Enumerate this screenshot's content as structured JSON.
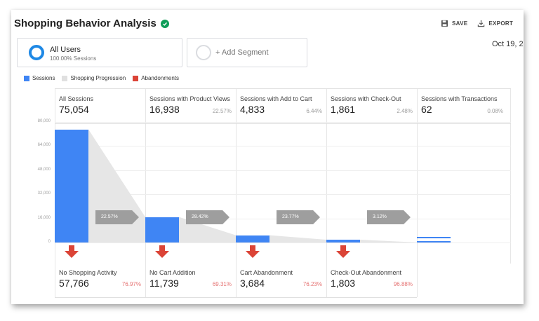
{
  "header": {
    "title": "Shopping Behavior Analysis",
    "save_label": "SAVE",
    "export_label": "EXPORT"
  },
  "segments": {
    "primary": {
      "name": "All Users",
      "sub": "100.00% Sessions"
    },
    "add_label": "+ Add Segment"
  },
  "date_range": "Oct 19, 2",
  "legend": [
    {
      "label": "Sessions",
      "color": "#3f85f4"
    },
    {
      "label": "Shopping Progression",
      "color": "#e0e0e0"
    },
    {
      "label": "Abandonments",
      "color": "#db4437"
    }
  ],
  "yaxis": [
    "80,000",
    "64,000",
    "48,000",
    "32,000",
    "16,000",
    "0"
  ],
  "stages": [
    {
      "label": "All Sessions",
      "value": "75,054",
      "pct": "",
      "sessions": 75054
    },
    {
      "label": "Sessions with Product Views",
      "value": "16,938",
      "pct": "22.57%",
      "sessions": 16938
    },
    {
      "label": "Sessions with Add to Cart",
      "value": "4,833",
      "pct": "6.44%",
      "sessions": 4833
    },
    {
      "label": "Sessions with Check-Out",
      "value": "1,861",
      "pct": "2.48%",
      "sessions": 1861
    },
    {
      "label": "Sessions with Transactions",
      "value": "62",
      "pct": "0.08%",
      "sessions": 62
    }
  ],
  "progressions": [
    "22.57%",
    "28.42%",
    "23.77%",
    "3.12%"
  ],
  "abandonments": [
    {
      "label": "No Shopping Activity",
      "value": "57,766",
      "pct": "76.97%"
    },
    {
      "label": "No Cart Addition",
      "value": "11,739",
      "pct": "69.31%"
    },
    {
      "label": "Cart Abandonment",
      "value": "3,684",
      "pct": "76.23%"
    },
    {
      "label": "Check-Out Abandonment",
      "value": "1,803",
      "pct": "96.88%"
    }
  ],
  "ymax": 80000
}
